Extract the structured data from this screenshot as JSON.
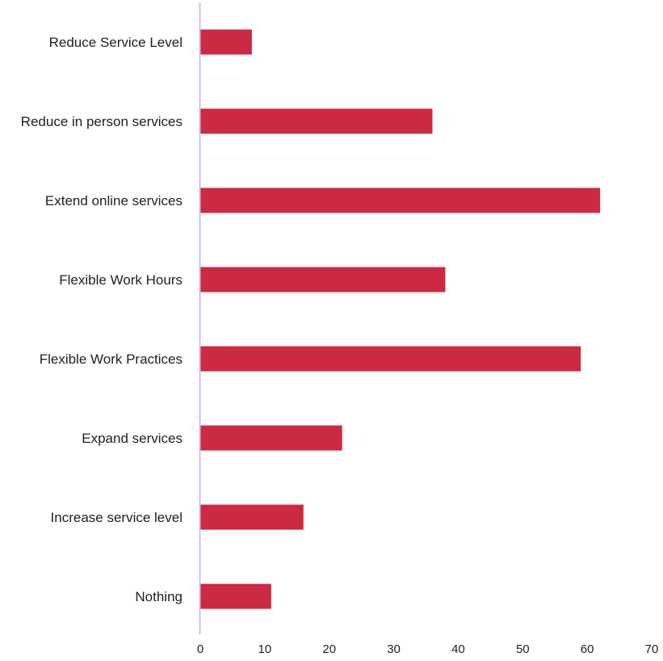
{
  "chart_data": {
    "type": "bar",
    "orientation": "horizontal",
    "categories": [
      "Reduce Service Level",
      "Reduce in person services",
      "Extend online services",
      "Flexible Work Hours",
      "Flexible Work Practices",
      "Expand services",
      "Increase service level",
      "Nothing"
    ],
    "values": [
      8,
      36,
      62,
      38,
      59,
      22,
      16,
      11
    ],
    "xlim": [
      0,
      70
    ],
    "xticks": [
      0,
      10,
      20,
      30,
      40,
      50,
      60,
      70
    ],
    "grid": false,
    "colors": {
      "bar": "#cc2a42",
      "axis": "#c9c3de",
      "text": "#1f1f1f",
      "background": "#ffffff"
    }
  }
}
